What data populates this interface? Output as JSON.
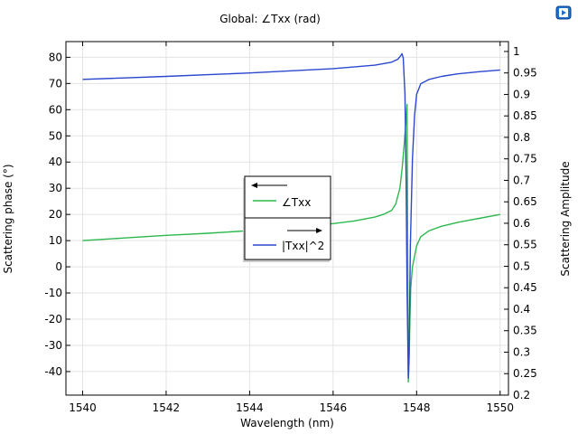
{
  "chart_data": {
    "type": "line",
    "title": "Global: ∠Txx (rad)",
    "xlabel": "Wavelength (nm)",
    "ylabel_left": "Scattering phase (°)",
    "ylabel_right": "Scattering Amplitude",
    "xlim": [
      1539.6,
      1550.2
    ],
    "ylim_left": [
      -49,
      86
    ],
    "ylim_right": [
      0.2,
      1.023
    ],
    "xticks": [
      1540,
      1542,
      1544,
      1546,
      1548,
      1550
    ],
    "yticks_left": [
      80,
      70,
      60,
      50,
      40,
      30,
      20,
      10,
      0,
      -10,
      -20,
      -30,
      -40
    ],
    "yticks_right": [
      "1",
      "0.95",
      "0.9",
      "0.85",
      "0.8",
      "0.75",
      "0.7",
      "0.65",
      "0.6",
      "0.55",
      "0.5",
      "0.45",
      "0.4",
      "0.35",
      "0.3",
      "0.25",
      "0.2"
    ],
    "grid": true,
    "legend_position": "center-left",
    "series": [
      {
        "name": "∠Txx",
        "axis": "left",
        "color": "#2db84d",
        "x": [
          1540,
          1541,
          1542,
          1543,
          1544,
          1545,
          1546,
          1546.5,
          1547,
          1547.2,
          1547.4,
          1547.5,
          1547.6,
          1547.65,
          1547.7,
          1547.74,
          1547.77,
          1547.8,
          1547.82,
          1547.84,
          1547.86,
          1547.9,
          1547.95,
          1548.0,
          1548.1,
          1548.3,
          1548.6,
          1549,
          1549.5,
          1550
        ],
        "y": [
          10,
          11,
          12,
          12.8,
          13.8,
          15,
          16.5,
          17.5,
          19,
          20,
          21.5,
          24,
          30,
          37,
          46,
          55,
          62,
          -44,
          -36,
          -20,
          -8,
          0,
          4,
          8,
          11.5,
          13.8,
          15.5,
          17,
          18.5,
          20
        ]
      },
      {
        "name": "|Txx|^2",
        "axis": "right",
        "color": "#2b48cf",
        "x": [
          1540,
          1542,
          1544,
          1545,
          1546,
          1547,
          1547.4,
          1547.55,
          1547.62,
          1547.65,
          1547.68,
          1547.72,
          1547.75,
          1547.77,
          1547.8,
          1547.82,
          1547.85,
          1547.9,
          1547.95,
          1548.0,
          1548.1,
          1548.3,
          1548.6,
          1549,
          1549.5,
          1550
        ],
        "y": [
          0.935,
          0.942,
          0.95,
          0.955,
          0.96,
          0.968,
          0.975,
          0.982,
          0.99,
          0.995,
          0.985,
          0.9,
          0.7,
          0.45,
          0.24,
          0.3,
          0.55,
          0.75,
          0.85,
          0.9,
          0.925,
          0.935,
          0.942,
          0.948,
          0.953,
          0.957
        ]
      }
    ]
  },
  "toolbar": {
    "icon": "playback-icon",
    "icon_color": "#1f6fd0"
  }
}
